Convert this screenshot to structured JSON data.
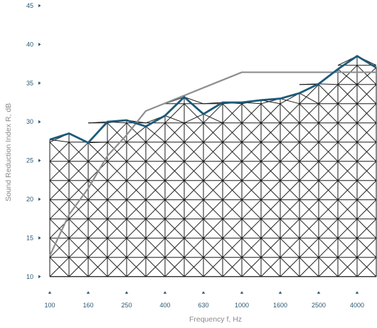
{
  "chart_data": {
    "type": "line",
    "title": "",
    "xlabel": "Frequency f, Hz",
    "ylabel": "Sound Reduction Index R, dB",
    "x_scale": "log",
    "ylim": [
      10,
      45
    ],
    "y_ticks": [
      10,
      15,
      20,
      25,
      30,
      35,
      40,
      45
    ],
    "x_tick_labels": [
      "100",
      "160",
      "250",
      "400",
      "630",
      "1000",
      "1600",
      "2500",
      "4000"
    ],
    "x": [
      100,
      125,
      160,
      200,
      250,
      315,
      400,
      500,
      630,
      800,
      1000,
      1250,
      1600,
      2000,
      2500,
      3150,
      4000,
      5000
    ],
    "fill_pattern": "cross-hatch",
    "series": [
      {
        "role": "measured",
        "color": "#1c5a7a",
        "values": [
          27.7,
          28.5,
          27.3,
          30.0,
          30.2,
          29.4,
          30.8,
          33.2,
          31.0,
          32.5,
          32.5,
          32.8,
          33.0,
          33.7,
          34.9,
          36.8,
          38.5,
          37.0
        ]
      },
      {
        "role": "reference",
        "color": "#8c8f92",
        "values": [
          12.7,
          18.0,
          21.4,
          25.6,
          28.3,
          31.4,
          32.4,
          33.4,
          34.4,
          35.4,
          36.4,
          36.4,
          36.4,
          36.4,
          36.4,
          36.4,
          36.4,
          36.4
        ]
      }
    ],
    "colors": {
      "tick_text": "#2b5874",
      "axis_title": "#8a8a8a",
      "hatch": "#1a1a1a"
    }
  }
}
